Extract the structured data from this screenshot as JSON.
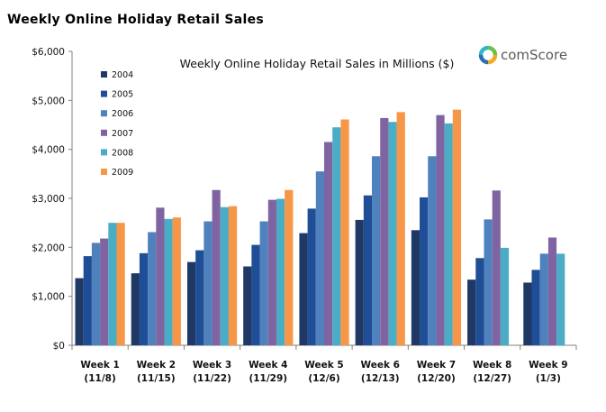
{
  "page": {
    "title": "Weekly Online Holiday Retail Sales"
  },
  "logo": {
    "text": "comScore",
    "colors": [
      "#6cc04a",
      "#f5a623",
      "#2a6fb0",
      "#2db5c8"
    ]
  },
  "chart_data": {
    "type": "bar",
    "title": "Weekly Online Holiday Retail Sales in Millions ($)",
    "xlabel": "",
    "ylabel": "",
    "ylim": [
      0,
      6000
    ],
    "yticks": [
      0,
      1000,
      2000,
      3000,
      4000,
      5000,
      6000
    ],
    "ytick_labels": [
      "$0",
      "$1,000",
      "$2,000",
      "$3,000",
      "$4,000",
      "$5,000",
      "$6,000"
    ],
    "categories": [
      [
        "Week 1",
        "(11/8)"
      ],
      [
        "Week 2",
        "(11/15)"
      ],
      [
        "Week 3",
        "(11/22)"
      ],
      [
        "Week 4",
        "(11/29)"
      ],
      [
        "Week 5",
        "(12/6)"
      ],
      [
        "Week 6",
        "(12/13)"
      ],
      [
        "Week 7",
        "(12/20)"
      ],
      [
        "Week 8",
        "(12/27)"
      ],
      [
        "Week 9",
        "(1/3)"
      ]
    ],
    "series": [
      {
        "name": "2004",
        "color": "#1f3864",
        "values": [
          1370,
          1470,
          1700,
          1610,
          2290,
          2560,
          2350,
          1340,
          1280
        ]
      },
      {
        "name": "2005",
        "color": "#1f4e96",
        "values": [
          1820,
          1880,
          1940,
          2050,
          2790,
          3060,
          3020,
          1780,
          1540
        ]
      },
      {
        "name": "2006",
        "color": "#4f81bd",
        "values": [
          2090,
          2310,
          2530,
          2530,
          3550,
          3860,
          3860,
          2570,
          1870
        ]
      },
      {
        "name": "2007",
        "color": "#8064a2",
        "values": [
          2180,
          2810,
          3170,
          2970,
          4150,
          4640,
          4700,
          3160,
          2200
        ]
      },
      {
        "name": "2008",
        "color": "#4bacc6",
        "values": [
          2500,
          2580,
          2820,
          2990,
          4450,
          4560,
          4530,
          1990,
          1870
        ]
      },
      {
        "name": "2009",
        "color": "#f79646",
        "values": [
          2500,
          2610,
          2840,
          3170,
          4610,
          4760,
          4810,
          null,
          null
        ]
      }
    ],
    "grid": false,
    "legend_position": "top-left"
  }
}
